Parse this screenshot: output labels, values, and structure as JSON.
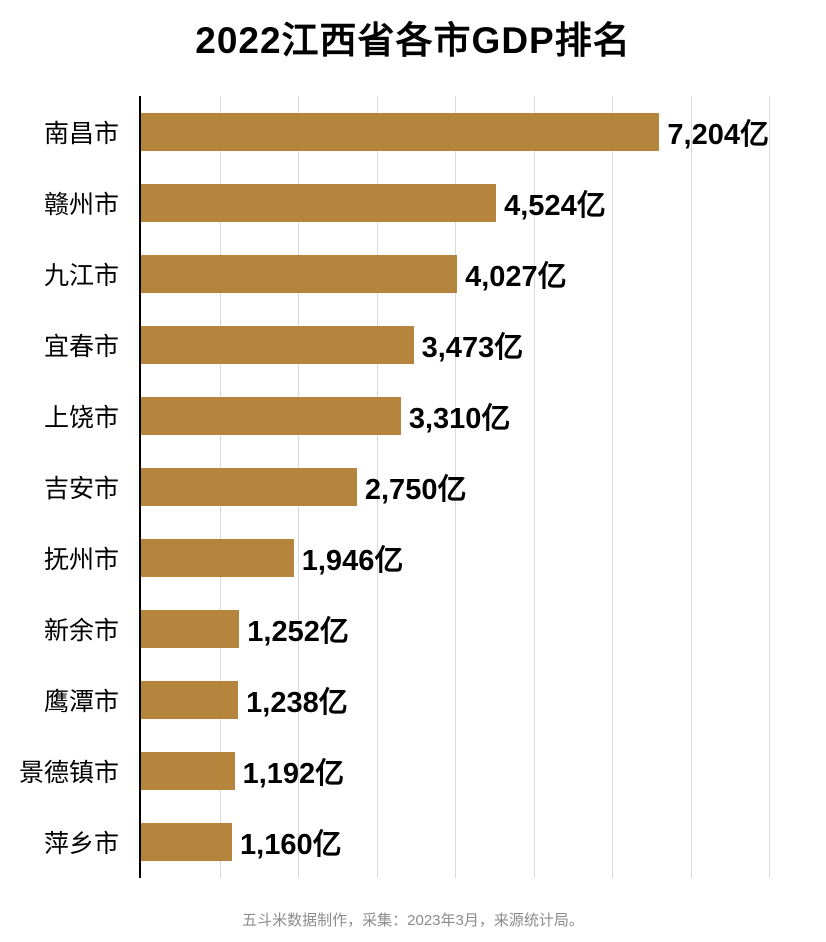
{
  "title": "2022江西省各市GDP排名",
  "footer": "五斗米数据制作，采集：2023年3月，来源统计局。",
  "colors": {
    "bar": "#b5853e",
    "gridline": "#d9d9d9",
    "axis": "#000000",
    "footer_text": "#8c8c8c"
  },
  "chart_data": {
    "type": "bar",
    "orientation": "horizontal",
    "title": "2022江西省各市GDP排名",
    "xlabel": "",
    "ylabel": "",
    "unit": "亿",
    "xlim": [
      0,
      8000
    ],
    "gridlines": [
      1000,
      2000,
      3000,
      4000,
      5000,
      6000,
      7000,
      8000
    ],
    "grid": true,
    "legend": false,
    "categories": [
      "南昌市",
      "赣州市",
      "九江市",
      "宜春市",
      "上饶市",
      "吉安市",
      "抚州市",
      "新余市",
      "鹰潭市",
      "景德镇市",
      "萍乡市"
    ],
    "values": [
      7204,
      4524,
      4027,
      3473,
      3310,
      2750,
      1946,
      1252,
      1238,
      1192,
      1160
    ],
    "value_labels": [
      "7,204亿",
      "4,524亿",
      "4,027亿",
      "3,473亿",
      "3,310亿",
      "2,750亿",
      "1,946亿",
      "1,252亿",
      "1,238亿",
      "1,192亿",
      "1,160亿"
    ],
    "source_note": "五斗米数据制作，采集：2023年3月，来源统计局。"
  }
}
